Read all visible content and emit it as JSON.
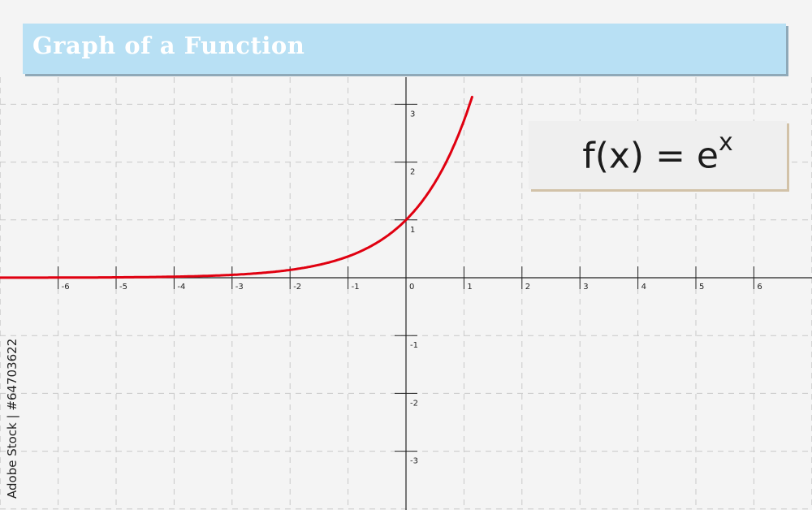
{
  "title": "Graph of a Function",
  "formula": {
    "base": "f(x) = e",
    "exponent": "x"
  },
  "watermark": "Adobe Stock | #64703622",
  "colors": {
    "curve": "#e00010",
    "title_bg": "#b8e0f4",
    "grid": "#c8c8c8",
    "axis": "#222222",
    "background": "#f4f4f4"
  },
  "chart_data": {
    "type": "line",
    "title": "Graph of a Function",
    "function": "e^x",
    "xlim": [
      -7,
      7
    ],
    "ylim": [
      -4,
      3.5
    ],
    "x_ticks": [
      -6,
      -5,
      -4,
      -3,
      -2,
      -1,
      0,
      1,
      2,
      3,
      4,
      5,
      6
    ],
    "y_ticks": [
      -3,
      -2,
      -1,
      1,
      2,
      3
    ],
    "x_tick_labels": [
      "-6",
      "-5",
      "-4",
      "-3",
      "-2",
      "-1",
      "0",
      "1",
      "2",
      "3",
      "4",
      "5",
      "6"
    ],
    "y_tick_labels": [
      "-3",
      "-2",
      "-1",
      "1",
      "2",
      "3"
    ],
    "grid": true,
    "series": [
      {
        "x_range": [
          -7,
          1.15
        ],
        "points": [
          [
            -7,
            0.001
          ],
          [
            -6,
            0.0025
          ],
          [
            -5,
            0.0067
          ],
          [
            -4,
            0.018
          ],
          [
            -3,
            0.05
          ],
          [
            -2,
            0.135
          ],
          [
            -1,
            0.368
          ],
          [
            0,
            1
          ],
          [
            0.5,
            1.649
          ],
          [
            1,
            2.718
          ],
          [
            1.15,
            3.158
          ]
        ]
      }
    ]
  }
}
